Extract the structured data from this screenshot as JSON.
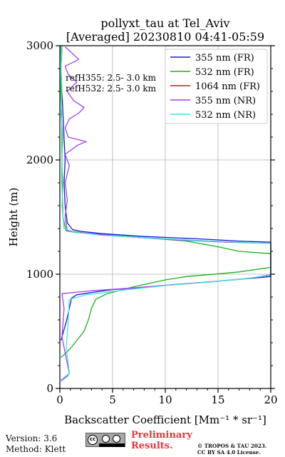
{
  "chart_data": {
    "type": "line",
    "title": "pollyxt_tau at Tel_Aviv",
    "subtitle": "[Averaged] 20230810 04:41-05:59",
    "xlabel": "Backscatter Coefficient [Mm⁻¹ * sr⁻¹]",
    "ylabel": "Height (m)",
    "xlim": [
      0,
      20
    ],
    "ylim": [
      0,
      3000
    ],
    "xticks": [
      0,
      5,
      10,
      15,
      20
    ],
    "yticks": [
      0,
      1000,
      2000,
      3000
    ],
    "xtick_labels": [
      "0",
      "5",
      "10",
      "15",
      "20"
    ],
    "ytick_labels": [
      "0",
      "1000",
      "2000",
      "3000"
    ],
    "grid": true,
    "legend_position": "top-right",
    "annotations": [
      "refH355:  2.5- 3.0 km",
      "refH532:  2.5- 3.0 km"
    ],
    "series": [
      {
        "name": "355 nm (FR)",
        "color": "#1a1adb",
        "points": [
          [
            0.1,
            420
          ],
          [
            0.6,
            580
          ],
          [
            0.9,
            700
          ],
          [
            1.1,
            790
          ],
          [
            1.6,
            820
          ],
          [
            3,
            840
          ],
          [
            5,
            865
          ],
          [
            8,
            885
          ],
          [
            11,
            910
          ],
          [
            14,
            930
          ],
          [
            17,
            955
          ],
          [
            20,
            980
          ],
          [
            20,
            1280
          ],
          [
            17,
            1290
          ],
          [
            13,
            1310
          ],
          [
            8,
            1330
          ],
          [
            4,
            1355
          ],
          [
            2,
            1375
          ],
          [
            1.2,
            1390
          ],
          [
            0.7,
            1450
          ],
          [
            0.5,
            1600
          ],
          [
            0.4,
            1800
          ],
          [
            0.5,
            2000
          ],
          [
            0.4,
            2200
          ],
          [
            0.3,
            2400
          ],
          [
            0.2,
            2600
          ],
          [
            0.1,
            2800
          ],
          [
            0.2,
            2980
          ]
        ]
      },
      {
        "name": "532 nm (FR)",
        "color": "#17b117",
        "points": [
          [
            0.1,
            270
          ],
          [
            1,
            350
          ],
          [
            2.3,
            500
          ],
          [
            2.7,
            600
          ],
          [
            3,
            700
          ],
          [
            3.4,
            780
          ],
          [
            4.5,
            830
          ],
          [
            7,
            890
          ],
          [
            10,
            950
          ],
          [
            12,
            980
          ],
          [
            14,
            995
          ],
          [
            17,
            1020
          ],
          [
            20,
            1060
          ],
          [
            20,
            1180
          ],
          [
            17,
            1200
          ],
          [
            15,
            1240
          ],
          [
            12,
            1290
          ],
          [
            8,
            1320
          ],
          [
            4,
            1345
          ],
          [
            1.5,
            1365
          ],
          [
            0.6,
            1380
          ],
          [
            0.3,
            1500
          ],
          [
            0.2,
            1800
          ],
          [
            0.2,
            2200
          ],
          [
            0.1,
            2600
          ],
          [
            0.1,
            3000
          ]
        ]
      },
      {
        "name": "1064 nm (FR)",
        "color": "#d11c1c",
        "points": []
      },
      {
        "name": "355 nm (NR)",
        "color": "#a53ff3",
        "points": [
          [
            0.1,
            70
          ],
          [
            0.9,
            130
          ],
          [
            0.2,
            450
          ],
          [
            0.4,
            700
          ],
          [
            0.2,
            830
          ],
          [
            3,
            855
          ],
          [
            7,
            880
          ],
          [
            11,
            910
          ],
          [
            15,
            940
          ],
          [
            18,
            965
          ],
          [
            20,
            995
          ],
          [
            20,
            1270
          ],
          [
            16,
            1280
          ],
          [
            11,
            1300
          ],
          [
            6,
            1330
          ],
          [
            2.5,
            1360
          ],
          [
            0.7,
            1380
          ],
          [
            0.5,
            1500
          ],
          [
            0.7,
            1650
          ],
          [
            0.5,
            1800
          ],
          [
            0.9,
            1950
          ],
          [
            0.5,
            2050
          ],
          [
            1.7,
            2130
          ],
          [
            2.5,
            2160
          ],
          [
            0.8,
            2200
          ],
          [
            0.5,
            2280
          ],
          [
            0.9,
            2360
          ],
          [
            1.8,
            2410
          ],
          [
            2.3,
            2460
          ],
          [
            1.3,
            2520
          ],
          [
            0.7,
            2600
          ],
          [
            1.6,
            2680
          ],
          [
            0.8,
            2750
          ],
          [
            0.5,
            2820
          ],
          [
            1.8,
            2880
          ],
          [
            1.1,
            2940
          ],
          [
            0.5,
            2990
          ]
        ]
      },
      {
        "name": "532 nm (NR)",
        "color": "#44e8d0",
        "points": [
          [
            0.1,
            60
          ],
          [
            0.8,
            110
          ],
          [
            0.9,
            140
          ],
          [
            0.6,
            350
          ],
          [
            0.8,
            600
          ],
          [
            0.9,
            780
          ],
          [
            2.5,
            820
          ],
          [
            6,
            860
          ],
          [
            10,
            900
          ],
          [
            14,
            930
          ],
          [
            17,
            955
          ],
          [
            20,
            990
          ],
          [
            20,
            1270
          ],
          [
            17,
            1280
          ],
          [
            12,
            1300
          ],
          [
            8,
            1320
          ],
          [
            4,
            1340
          ],
          [
            1.3,
            1370
          ],
          [
            0.4,
            1400
          ],
          [
            0.2,
            1600
          ],
          [
            0.3,
            1800
          ],
          [
            0.2,
            2000
          ],
          [
            0.3,
            2200
          ],
          [
            0.1,
            2400
          ],
          [
            0.2,
            2600
          ],
          [
            0.1,
            2800
          ],
          [
            0.2,
            3000
          ]
        ]
      }
    ]
  },
  "footer": {
    "version": "Version: 3.6",
    "method": "Method: Klett",
    "preliminary_line1": "Preliminary",
    "preliminary_line2": "Results.",
    "copyright_line1": "© TROPOS & TAU 2023.",
    "copyright_line2": "CC BY SA 4.0 License.",
    "license_icon": "cc-by-sa-badge"
  }
}
